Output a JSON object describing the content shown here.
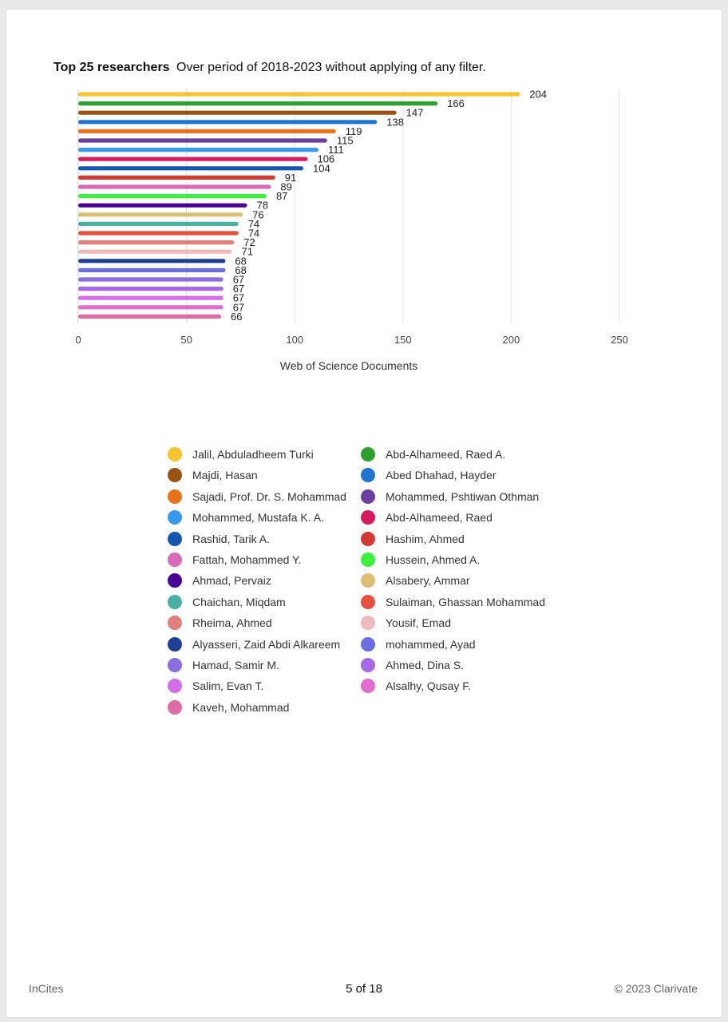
{
  "title": {
    "bold": "Top 25 researchers",
    "rest": "Over period of 2018-2023 without applying of any filter."
  },
  "chart_data": {
    "type": "bar",
    "orientation": "horizontal",
    "title": "Top 25 researchers",
    "xlabel": "Web of Science Documents",
    "ylabel": "",
    "xlim": [
      0,
      250
    ],
    "xticks": [
      0,
      50,
      100,
      150,
      200,
      250
    ],
    "grid": true,
    "legend_placement": "bottom",
    "categories": [
      "Jalil, Abduladheem Turki",
      "Abd-Alhameed, Raed A.",
      "Majdi, Hasan",
      "Abed Dhahad, Hayder",
      "Sajadi, Prof. Dr. S. Mohammad",
      "Mohammed, Pshtiwan Othman",
      "Mohammed, Mustafa K. A.",
      "Abd-Alhameed, Raed",
      "Rashid, Tarik A.",
      "Hashim, Ahmed",
      "Fattah, Mohammed Y.",
      "Hussein, Ahmed A.",
      "Ahmad, Pervaiz",
      "Alsabery, Ammar",
      "Chaichan, Miqdam",
      "Sulaiman, Ghassan Mohammad",
      "Rheima, Ahmed",
      "Yousif, Emad",
      "Alyasseri, Zaid Abdi Alkareem",
      "mohammed, Ayad",
      "Hamad, Samir M.",
      "Ahmed, Dina S.",
      "Salim, Evan T.",
      "Alsalhy, Qusay F.",
      "Kaveh, Mohammad"
    ],
    "values": [
      204,
      166,
      147,
      138,
      119,
      115,
      111,
      106,
      104,
      91,
      89,
      87,
      78,
      76,
      74,
      74,
      72,
      71,
      68,
      68,
      67,
      67,
      67,
      67,
      66
    ],
    "colors": [
      "#f5c431",
      "#2ea02e",
      "#9a5213",
      "#1f74d0",
      "#e8711c",
      "#6a3fa0",
      "#3599ee",
      "#d81b60",
      "#1756b0",
      "#d13b32",
      "#d96ab9",
      "#3ef03e",
      "#4b0095",
      "#dcbf72",
      "#4aafa5",
      "#e5503f",
      "#e27f7d",
      "#ecbcbc",
      "#1f3f94",
      "#6a6ee0",
      "#8b6ee0",
      "#a768e8",
      "#d46ee8",
      "#e26ccf",
      "#de6aa6"
    ]
  },
  "legend": {
    "items": [
      {
        "label": "Jalil, Abduladheem Turki",
        "color": "#f5c431"
      },
      {
        "label": "Abd-Alhameed, Raed A.",
        "color": "#2ea02e"
      },
      {
        "label": "Majdi, Hasan",
        "color": "#9a5213"
      },
      {
        "label": "Abed Dhahad, Hayder",
        "color": "#1f74d0"
      },
      {
        "label": "Sajadi, Prof. Dr. S. Mohammad",
        "color": "#e8711c"
      },
      {
        "label": "Mohammed, Pshtiwan Othman",
        "color": "#6a3fa0"
      },
      {
        "label": "Mohammed, Mustafa K. A.",
        "color": "#3599ee"
      },
      {
        "label": "Abd-Alhameed, Raed",
        "color": "#d81b60"
      },
      {
        "label": "Rashid, Tarik A.",
        "color": "#1756b0"
      },
      {
        "label": "Hashim, Ahmed",
        "color": "#d13b32"
      },
      {
        "label": "Fattah, Mohammed Y.",
        "color": "#d96ab9"
      },
      {
        "label": "Hussein, Ahmed A.",
        "color": "#3ef03e"
      },
      {
        "label": "Ahmad, Pervaiz",
        "color": "#4b0095"
      },
      {
        "label": "Alsabery, Ammar",
        "color": "#dcbf72"
      },
      {
        "label": "Chaichan, Miqdam",
        "color": "#4aafa5"
      },
      {
        "label": "Sulaiman, Ghassan Mohammad",
        "color": "#e5503f"
      },
      {
        "label": "Rheima, Ahmed",
        "color": "#e27f7d"
      },
      {
        "label": "Yousif, Emad",
        "color": "#ecbcbc"
      },
      {
        "label": "Alyasseri, Zaid Abdi Alkareem",
        "color": "#1f3f94"
      },
      {
        "label": "mohammed, Ayad",
        "color": "#6a6ee0"
      },
      {
        "label": "Hamad, Samir M.",
        "color": "#8b6ee0"
      },
      {
        "label": "Ahmed, Dina S.",
        "color": "#a768e8"
      },
      {
        "label": "Salim, Evan T.",
        "color": "#d46ee8"
      },
      {
        "label": "Alsalhy, Qusay F.",
        "color": "#e26ccf"
      },
      {
        "label": "Kaveh, Mohammad",
        "color": "#de6aa6"
      }
    ]
  },
  "footer": {
    "left": "InCites",
    "center": "5 of 18",
    "right": "© 2023 Clarivate"
  }
}
